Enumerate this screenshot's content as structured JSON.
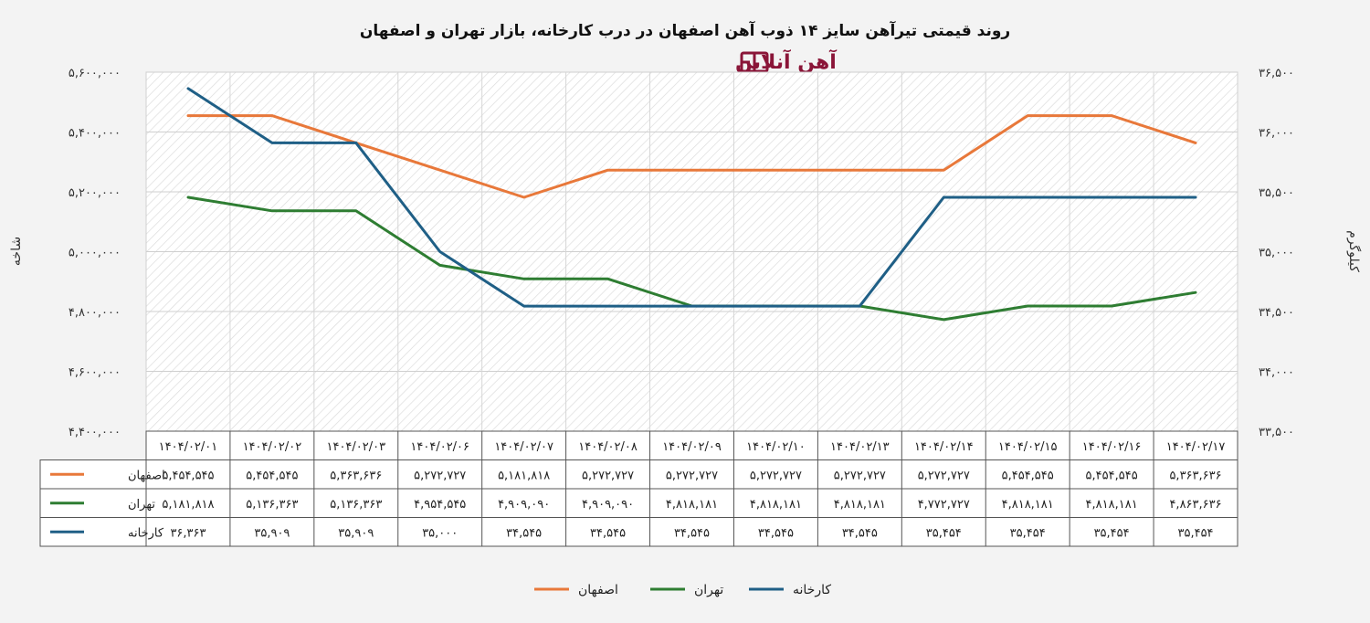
{
  "title": "روند قیمتی تیرآهن سایز ۱۴ ذوب آهن اصفهان در درب کارخانه، بازار تهران و اصفهان",
  "logo": {
    "text": "آهن آنلاین",
    "icon": "ahanonline-logo-icon"
  },
  "chart_data": {
    "type": "line",
    "title": "روند قیمتی تیرآهن سایز ۱۴ ذوب آهن اصفهان در درب کارخانه، بازار تهران و اصفهان",
    "ylabel_left": "شاخه",
    "ylabel_right": "کیلوگرم",
    "ylim_left": [
      4400000,
      5600000
    ],
    "ylim_right": [
      33500,
      36500
    ],
    "yticks_left": [
      "۵,۶۰۰,۰۰۰",
      "۵,۴۰۰,۰۰۰",
      "۵,۲۰۰,۰۰۰",
      "۵,۰۰۰,۰۰۰",
      "۴,۸۰۰,۰۰۰",
      "۴,۶۰۰,۰۰۰",
      "۴,۴۰۰,۰۰۰"
    ],
    "yticks_right": [
      "۳۶,۵۰۰",
      "۳۶,۰۰۰",
      "۳۵,۵۰۰",
      "۳۵,۰۰۰",
      "۳۴,۵۰۰",
      "۳۴,۰۰۰",
      "۳۳,۵۰۰"
    ],
    "grid": true,
    "legend_position": "bottom-center",
    "categories": [
      "۱۴۰۴/۰۲/۰۱",
      "۱۴۰۴/۰۲/۰۲",
      "۱۴۰۴/۰۲/۰۳",
      "۱۴۰۴/۰۲/۰۶",
      "۱۴۰۴/۰۲/۰۷",
      "۱۴۰۴/۰۲/۰۸",
      "۱۴۰۴/۰۲/۰۹",
      "۱۴۰۴/۰۲/۱۰",
      "۱۴۰۴/۰۲/۱۳",
      "۱۴۰۴/۰۲/۱۴",
      "۱۴۰۴/۰۲/۱۵",
      "۱۴۰۴/۰۲/۱۶",
      "۱۴۰۴/۰۲/۱۷"
    ],
    "series": [
      {
        "name": "اصفهان",
        "color": "#e8783a",
        "axis": "left",
        "values": [
          5454545,
          5454545,
          5363636,
          5272727,
          5181818,
          5272727,
          5272727,
          5272727,
          5272727,
          5272727,
          5454545,
          5454545,
          5363636
        ],
        "labels": [
          "۵,۴۵۴,۵۴۵",
          "۵,۴۵۴,۵۴۵",
          "۵,۳۶۳,۶۳۶",
          "۵,۲۷۲,۷۲۷",
          "۵,۱۸۱,۸۱۸",
          "۵,۲۷۲,۷۲۷",
          "۵,۲۷۲,۷۲۷",
          "۵,۲۷۲,۷۲۷",
          "۵,۲۷۲,۷۲۷",
          "۵,۲۷۲,۷۲۷",
          "۵,۴۵۴,۵۴۵",
          "۵,۴۵۴,۵۴۵",
          "۵,۳۶۳,۶۳۶"
        ]
      },
      {
        "name": "تهران",
        "color": "#2e7d32",
        "axis": "left",
        "values": [
          5181818,
          5136363,
          5136363,
          4954545,
          4909090,
          4909090,
          4818181,
          4818181,
          4818181,
          4772727,
          4818181,
          4818181,
          4863636
        ],
        "labels": [
          "۵,۱۸۱,۸۱۸",
          "۵,۱۳۶,۳۶۳",
          "۵,۱۳۶,۳۶۳",
          "۴,۹۵۴,۵۴۵",
          "۴,۹۰۹,۰۹۰",
          "۴,۹۰۹,۰۹۰",
          "۴,۸۱۸,۱۸۱",
          "۴,۸۱۸,۱۸۱",
          "۴,۸۱۸,۱۸۱",
          "۴,۷۷۲,۷۲۷",
          "۴,۸۱۸,۱۸۱",
          "۴,۸۱۸,۱۸۱",
          "۴,۸۶۳,۶۳۶"
        ]
      },
      {
        "name": "کارخانه",
        "color": "#1f5f86",
        "axis": "right",
        "values": [
          36363,
          35909,
          35909,
          35000,
          34545,
          34545,
          34545,
          34545,
          34545,
          35454,
          35454,
          35454,
          35454
        ],
        "labels": [
          "۳۶,۳۶۳",
          "۳۵,۹۰۹",
          "۳۵,۹۰۹",
          "۳۵,۰۰۰",
          "۳۴,۵۴۵",
          "۳۴,۵۴۵",
          "۳۴,۵۴۵",
          "۳۴,۵۴۵",
          "۳۴,۵۴۵",
          "۳۵,۴۵۴",
          "۳۵,۴۵۴",
          "۳۵,۴۵۴",
          "۳۵,۴۵۴"
        ]
      }
    ]
  }
}
